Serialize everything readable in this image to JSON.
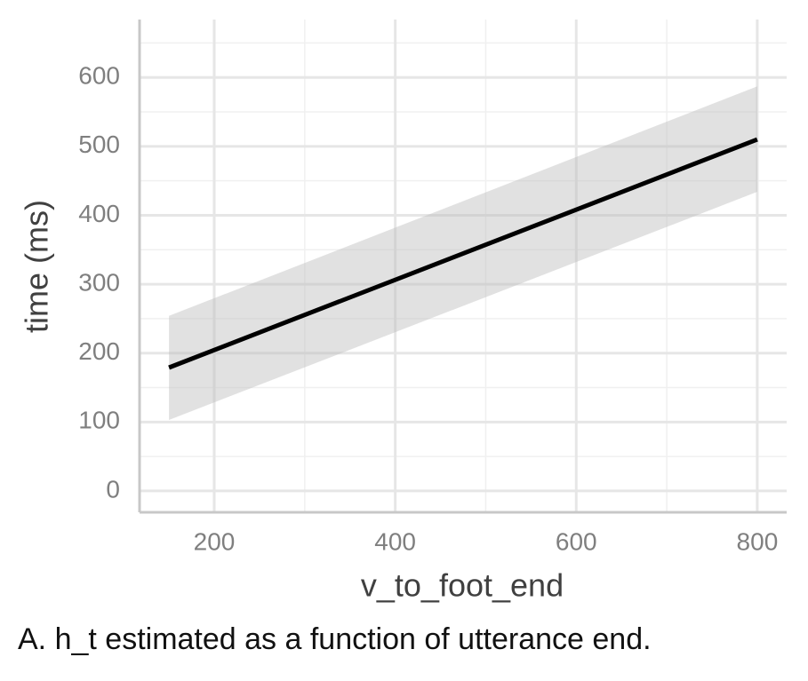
{
  "chart_data": {
    "type": "line",
    "x_label": "v_to_foot_end",
    "y_label": "time (ms)",
    "caption": "A.  h_t estimated as a function of utterance end.",
    "x": [
      150,
      800
    ],
    "series": [
      {
        "color": "#000000",
        "values": [
          179,
          510
        ],
        "lower": [
          103,
          434
        ],
        "upper": [
          254,
          587
        ],
        "band_color": "#bdbdbd"
      }
    ],
    "xlim": [
      117.5,
      832.5
    ],
    "xticks": [
      200,
      400,
      600,
      800
    ],
    "ylim": [
      -31,
      684
    ],
    "yticks": [
      0,
      100,
      200,
      300,
      400,
      500,
      600
    ],
    "grid": true
  }
}
